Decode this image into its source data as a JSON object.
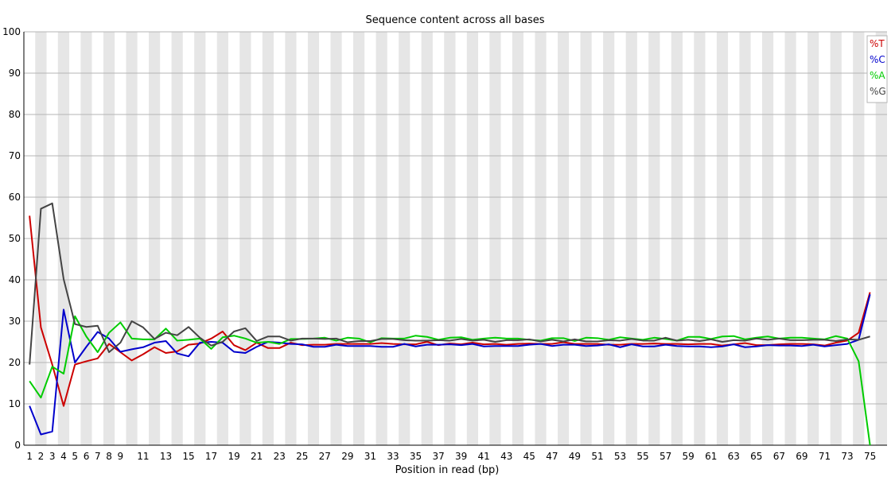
{
  "chart_data": {
    "type": "line",
    "title": "Sequence content across all bases",
    "xlabel": "Position in read (bp)",
    "ylabel": "",
    "ylim": [
      0,
      100
    ],
    "yticks": [
      0,
      10,
      20,
      30,
      40,
      50,
      60,
      70,
      80,
      90,
      100
    ],
    "x": [
      1,
      2,
      3,
      4,
      5,
      6,
      7,
      8,
      9,
      10,
      11,
      12,
      13,
      14,
      15,
      16,
      17,
      18,
      19,
      20,
      21,
      22,
      23,
      24,
      25,
      26,
      27,
      28,
      29,
      30,
      31,
      32,
      33,
      34,
      35,
      36,
      37,
      38,
      39,
      40,
      41,
      42,
      43,
      44,
      45,
      46,
      47,
      48,
      49,
      50,
      51,
      52,
      53,
      54,
      55,
      56,
      57,
      58,
      59,
      60,
      61,
      62,
      63,
      64,
      65,
      66,
      67,
      68,
      69,
      70,
      71,
      72,
      73,
      74,
      75
    ],
    "xtick_labels": [
      "1",
      "2",
      "3",
      "4",
      "5",
      "6",
      "7",
      "8",
      "9",
      "11",
      "13",
      "15",
      "17",
      "19",
      "21",
      "23",
      "25",
      "27",
      "29",
      "31",
      "33",
      "35",
      "37",
      "39",
      "41",
      "43",
      "45",
      "47",
      "49",
      "51",
      "53",
      "55",
      "57",
      "59",
      "61",
      "63",
      "65",
      "67",
      "69",
      "71",
      "73",
      "75"
    ],
    "grid": true,
    "legend_position": "top-right",
    "series": [
      {
        "name": "%T",
        "color": "#cc0000",
        "values": [
          55.5,
          28.5,
          19.5,
          9.5,
          19.5,
          20.3,
          21,
          24.5,
          22.5,
          20.5,
          22,
          23.7,
          22.3,
          22.7,
          24.3,
          24.6,
          25.8,
          27.5,
          24.2,
          23,
          24.8,
          23.5,
          23.5,
          24.8,
          24.2,
          24.3,
          24.3,
          24.5,
          24.5,
          24.5,
          24.5,
          24.7,
          24.5,
          24.4,
          24.4,
          25,
          24.2,
          24.6,
          24.4,
          24.8,
          24.4,
          24.5,
          24.3,
          24.5,
          24.6,
          24.5,
          24.5,
          24.9,
          24.5,
          24.5,
          24.5,
          24.3,
          24.3,
          24.5,
          24.5,
          24.6,
          24.5,
          24.5,
          24.4,
          24.5,
          24.5,
          24.1,
          24.4,
          24.7,
          24.2,
          24.2,
          24.4,
          24.5,
          24.5,
          24.4,
          24.1,
          24.8,
          25.3,
          27.2,
          37
        ]
      },
      {
        "name": "%C",
        "color": "#0000cc",
        "values": [
          9.5,
          2.6,
          3.3,
          32.8,
          20,
          23.8,
          27.4,
          25.8,
          22.6,
          23.2,
          23.7,
          24.8,
          25.2,
          22.2,
          21.5,
          24.8,
          25,
          24.8,
          22.6,
          22.3,
          23.8,
          25,
          24.8,
          24.5,
          24.4,
          23.8,
          23.8,
          24.3,
          24,
          24,
          24,
          23.8,
          23.8,
          24.5,
          23.9,
          24.3,
          24.3,
          24.4,
          24.2,
          24.5,
          23.9,
          24,
          24,
          24,
          24.3,
          24.5,
          24,
          24.3,
          24.3,
          24,
          24.1,
          24.4,
          23.7,
          24.4,
          23.9,
          23.9,
          24.3,
          24,
          23.9,
          23.9,
          23.7,
          23.9,
          24.4,
          23.7,
          23.9,
          24.2,
          24.1,
          24.1,
          24,
          24.3,
          23.9,
          24.2,
          24.5,
          25.5,
          36.5
        ]
      },
      {
        "name": "%A",
        "color": "#00cc00",
        "values": [
          15.5,
          11.5,
          19,
          17.3,
          31.2,
          26.3,
          22.5,
          27.2,
          29.7,
          25.8,
          25.6,
          25.6,
          28.2,
          25.3,
          25.5,
          25.8,
          23.3,
          26.1,
          26.5,
          25.8,
          24.8,
          25,
          24.5,
          25.7,
          25.7,
          25.8,
          26,
          25.3,
          26,
          25.8,
          24.9,
          25.9,
          25.8,
          25.8,
          26.5,
          26.2,
          25.5,
          26,
          26.1,
          25.5,
          25.8,
          26,
          25.8,
          25.8,
          25.5,
          25.3,
          25.9,
          25.9,
          25.2,
          26,
          25.9,
          25.5,
          26.1,
          25.8,
          25.5,
          26,
          25.7,
          25.3,
          26.2,
          26.2,
          25.7,
          26.3,
          26.4,
          25.6,
          26,
          26.3,
          25.8,
          26,
          26,
          25.8,
          25.6,
          26.4,
          25.8,
          20.3,
          0
        ]
      },
      {
        "name": "%G",
        "color": "#444444",
        "values": [
          19.5,
          57.2,
          58.5,
          40.2,
          29.3,
          28.6,
          28.9,
          22.5,
          24.8,
          30,
          28.5,
          25.7,
          27.2,
          26.6,
          28.6,
          26,
          24.1,
          25,
          27.5,
          28.3,
          25.2,
          26.3,
          26.3,
          25.3,
          25.8,
          25.8,
          25.7,
          25.8,
          24.9,
          25.2,
          25.2,
          25.7,
          25.7,
          25.4,
          25.3,
          25.3,
          25.4,
          25.3,
          25.7,
          25.3,
          25.5,
          25,
          25.4,
          25.4,
          25.6,
          25.1,
          25.5,
          25.1,
          25.6,
          25.1,
          25.1,
          25.4,
          25.3,
          25.7,
          25.3,
          25.3,
          26,
          25.3,
          25.5,
          25.2,
          25.6,
          25,
          25.4,
          25.3,
          25.8,
          25.5,
          25.8,
          25.4,
          25.4,
          25.5,
          25.5,
          25.2,
          25.6,
          25.5,
          26.3
        ]
      }
    ]
  }
}
